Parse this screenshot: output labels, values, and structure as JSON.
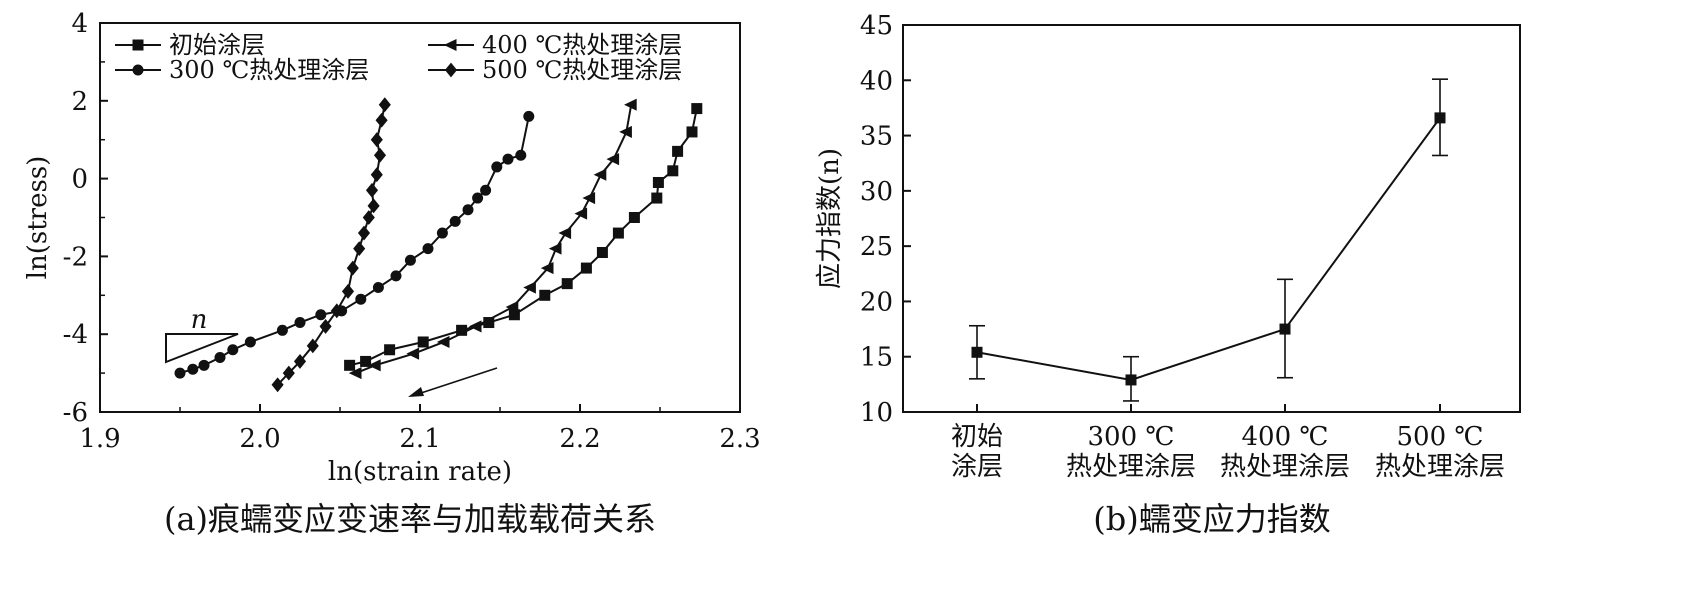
{
  "chart_data": [
    {
      "type": "scatter",
      "panel_caption": "(a)痕蠕变应变速率与加载载荷关系",
      "xlabel": "ln(strain rate)",
      "ylabel": "ln(stress)",
      "xlim": [
        1.9,
        2.3
      ],
      "ylim": [
        -6,
        4
      ],
      "xticks": [
        "1.9",
        "2.0",
        "2.1",
        "2.2",
        "2.3"
      ],
      "yticks": [
        "4",
        "2",
        "0",
        "-2",
        "-4",
        "-6"
      ],
      "legend_position": "top",
      "annotation": "n",
      "series": [
        {
          "name": "初始涂层",
          "marker": "square",
          "x": [
            2.056,
            2.066,
            2.081,
            2.102,
            2.126,
            2.143,
            2.159,
            2.178,
            2.192,
            2.204,
            2.214,
            2.224,
            2.234,
            2.248,
            2.249,
            2.258,
            2.261,
            2.27,
            2.273
          ],
          "y": [
            -4.8,
            -4.7,
            -4.4,
            -4.2,
            -3.9,
            -3.7,
            -3.5,
            -3.0,
            -2.7,
            -2.3,
            -1.9,
            -1.4,
            -1.0,
            -0.5,
            -0.1,
            0.2,
            0.7,
            1.2,
            1.8
          ]
        },
        {
          "name": "300 ℃热处理涂层",
          "marker": "circle",
          "x": [
            1.95,
            1.958,
            1.965,
            1.975,
            1.983,
            1.994,
            2.014,
            2.025,
            2.038,
            2.051,
            2.063,
            2.074,
            2.085,
            2.094,
            2.105,
            2.114,
            2.122,
            2.13,
            2.136,
            2.141,
            2.148,
            2.155,
            2.163,
            2.168
          ],
          "y": [
            -5.0,
            -4.9,
            -4.8,
            -4.6,
            -4.4,
            -4.2,
            -3.9,
            -3.7,
            -3.5,
            -3.4,
            -3.1,
            -2.8,
            -2.5,
            -2.1,
            -1.8,
            -1.4,
            -1.1,
            -0.8,
            -0.5,
            -0.3,
            0.3,
            0.5,
            0.6,
            1.6
          ]
        },
        {
          "name": "400 ℃热处理涂层",
          "marker": "triangle-left",
          "x": [
            2.06,
            2.072,
            2.096,
            2.115,
            2.135,
            2.158,
            2.169,
            2.18,
            2.185,
            2.191,
            2.201,
            2.206,
            2.213,
            2.221,
            2.229,
            2.232
          ],
          "y": [
            -5.0,
            -4.8,
            -4.5,
            -4.2,
            -3.8,
            -3.3,
            -2.8,
            -2.3,
            -1.8,
            -1.4,
            -0.9,
            -0.5,
            0.1,
            0.5,
            1.2,
            1.9
          ]
        },
        {
          "name": "500 ℃热处理涂层",
          "marker": "diamond",
          "x": [
            2.011,
            2.018,
            2.025,
            2.033,
            2.041,
            2.048,
            2.055,
            2.058,
            2.062,
            2.065,
            2.068,
            2.071,
            2.07,
            2.073,
            2.075,
            2.073,
            2.076,
            2.078
          ],
          "y": [
            -5.3,
            -5.0,
            -4.7,
            -4.3,
            -3.8,
            -3.4,
            -2.9,
            -2.3,
            -1.8,
            -1.4,
            -1.0,
            -0.7,
            -0.3,
            0.1,
            0.6,
            1.0,
            1.5,
            1.9
          ]
        }
      ]
    },
    {
      "type": "line",
      "panel_caption": "(b)蠕变应力指数",
      "xlabel": "",
      "ylabel": "应力指数(n)",
      "ylim": [
        10,
        45
      ],
      "yticks": [
        "10",
        "15",
        "20",
        "25",
        "30",
        "35",
        "40",
        "45"
      ],
      "categories": [
        [
          "初始",
          "涂层"
        ],
        [
          "300 ℃",
          "热处理涂层"
        ],
        [
          "400 ℃",
          "热处理涂层"
        ],
        [
          "500 ℃",
          "热处理涂层"
        ]
      ],
      "marker": "square",
      "values": [
        15.4,
        12.9,
        17.5,
        36.6
      ],
      "error_low": [
        13.0,
        11.0,
        13.1,
        33.2
      ],
      "error_high": [
        17.8,
        15.0,
        22.0,
        40.1
      ]
    }
  ]
}
